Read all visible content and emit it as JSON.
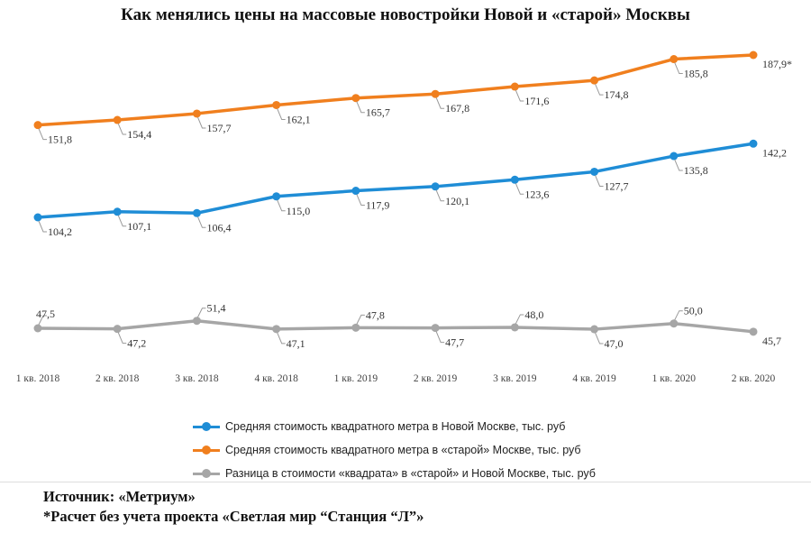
{
  "title": "Как менялись цены на массовые новостройки Новой и «старой» Москвы",
  "chart_data": {
    "type": "line",
    "categories": [
      "1 кв. 2018",
      "2 кв. 2018",
      "3 кв. 2018",
      "4 кв. 2018",
      "1 кв. 2019",
      "2 кв. 2019",
      "3 кв. 2019",
      "4 кв. 2019",
      "1 кв. 2020",
      "2 кв. 2020"
    ],
    "series": [
      {
        "name": "Средняя стоимость квадратного метра в Новой Москве, тыс. руб",
        "color": "#1f8dd6",
        "values": [
          104.2,
          107.1,
          106.4,
          115.0,
          117.9,
          120.1,
          123.6,
          127.7,
          135.8,
          142.2
        ],
        "labels": [
          "104,2",
          "107,1",
          "106,4",
          "115,0",
          "117,9",
          "120,1",
          "123,6",
          "127,7",
          "135,8",
          "142,2"
        ]
      },
      {
        "name": "Средняя стоимость квадратного метра в «старой» Москве, тыс. руб",
        "color": "#f07f1e",
        "values": [
          151.8,
          154.4,
          157.7,
          162.1,
          165.7,
          167.8,
          171.6,
          174.8,
          185.8,
          187.9
        ],
        "labels": [
          "151,8",
          "154,4",
          "157,7",
          "162,1",
          "165,7",
          "167,8",
          "171,6",
          "174,8",
          "185,8",
          "187,9*"
        ]
      },
      {
        "name": "Разница в стоимости «квадрата» в «старой» и Новой Москве, тыс. руб",
        "color": "#a6a6a6",
        "values": [
          47.5,
          47.2,
          51.4,
          47.1,
          47.8,
          47.7,
          48.0,
          47.0,
          50.0,
          45.7
        ],
        "labels": [
          "47,5",
          "47,2",
          "51,4",
          "47,1",
          "47,8",
          "47,7",
          "48,0",
          "47,0",
          "50,0",
          "45,7"
        ]
      }
    ],
    "legend_position": "bottom",
    "grid": false
  },
  "footer": {
    "source": "Источник: «Метриум»",
    "note": "*Расчет без учета проекта «Светлая мир “Станция “Л”»"
  }
}
